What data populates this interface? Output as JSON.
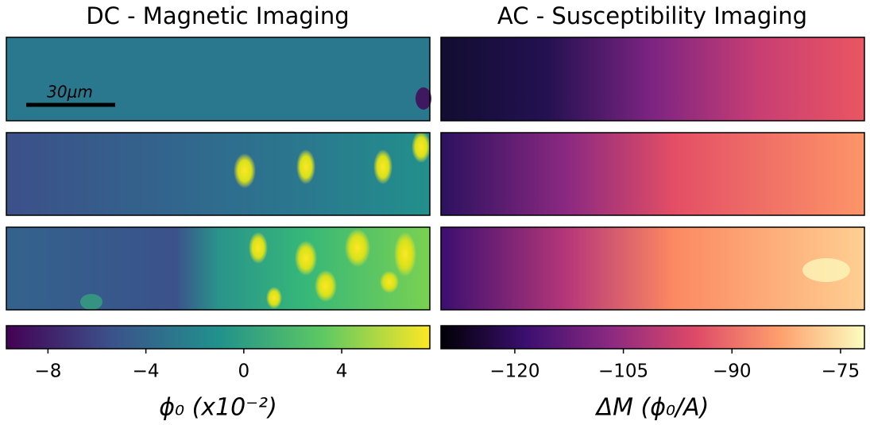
{
  "panels": [
    {
      "title": "DC - Magnetic Imaging",
      "scale_bar": "30μm",
      "colorbar": {
        "label": "ϕ₀ (x10⁻²)",
        "lim": [
          -9.7,
          7.6
        ],
        "ticks": [
          {
            "value": -8,
            "label": "−8"
          },
          {
            "value": -4,
            "label": "−4"
          },
          0,
          4
        ],
        "colors": [
          "#440154",
          "#3b528b",
          "#21918c",
          "#5ec962",
          "#fde725"
        ]
      }
    },
    {
      "title": "AC - Susceptibility Imaging",
      "colorbar": {
        "label": "ΔM (ϕ₀/A)",
        "lim": [
          -130.2,
          -71.7
        ],
        "ticks": [
          {
            "value": -120,
            "label": "−120"
          },
          {
            "value": -105,
            "label": "−105"
          },
          {
            "value": -90,
            "label": "−90"
          },
          {
            "value": -75,
            "label": "−75"
          }
        ],
        "colors": [
          "#000004",
          "#3b0f70",
          "#8c2981",
          "#de4968",
          "#fe9f6d",
          "#fcfdbf"
        ]
      }
    }
  ]
}
